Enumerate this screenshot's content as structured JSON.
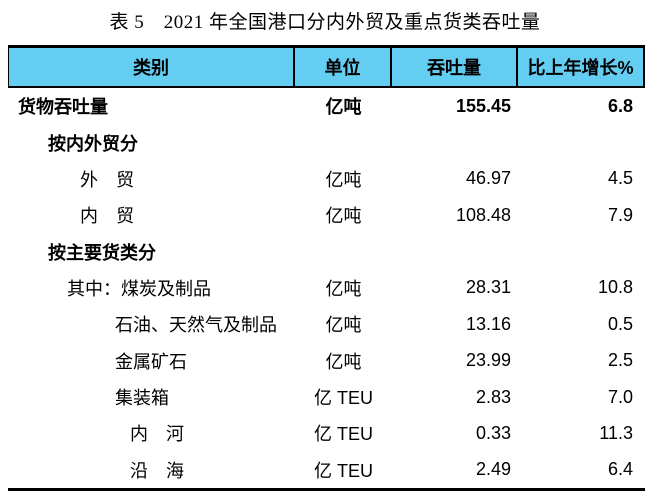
{
  "title": "表 5　2021 年全国港口分内外贸及重点货类吞吐量",
  "colors": {
    "header_bg": "#63CDF2",
    "border": "#000000"
  },
  "table": {
    "columns": [
      {
        "label": "类别"
      },
      {
        "label": "单位"
      },
      {
        "label": "吞吐量"
      },
      {
        "label": "比上年增长%"
      }
    ],
    "rows": [
      {
        "label": "货物吞吐量",
        "indent": 0,
        "bold": true,
        "unit": "亿吨",
        "value": "155.45",
        "growth": "6.8"
      },
      {
        "label": "按内外贸分",
        "indent": 1,
        "bold": true,
        "unit": "",
        "value": "",
        "growth": ""
      },
      {
        "label": "外　贸",
        "indent": 2,
        "bold": false,
        "unit": "亿吨",
        "value": "46.97",
        "growth": "4.5"
      },
      {
        "label": "内　贸",
        "indent": 2,
        "bold": false,
        "unit": "亿吨",
        "value": "108.48",
        "growth": "7.9"
      },
      {
        "label": "按主要货类分",
        "indent": 1,
        "bold": true,
        "unit": "",
        "value": "",
        "growth": ""
      },
      {
        "label": "其中：煤炭及制品",
        "indent": 3,
        "bold": false,
        "unit": "亿吨",
        "value": "28.31",
        "growth": "10.8"
      },
      {
        "label": "石油、天然气及制品",
        "indent": 4,
        "bold": false,
        "unit": "亿吨",
        "value": "13.16",
        "growth": "0.5"
      },
      {
        "label": "金属矿石",
        "indent": 4,
        "bold": false,
        "unit": "亿吨",
        "value": "23.99",
        "growth": "2.5"
      },
      {
        "label": "集装箱",
        "indent": 4,
        "bold": false,
        "unit": "亿 TEU",
        "value": "2.83",
        "growth": "7.0"
      },
      {
        "label": "内　河",
        "indent": 5,
        "bold": false,
        "unit": "亿 TEU",
        "value": "0.33",
        "growth": "11.3"
      },
      {
        "label": "沿　海",
        "indent": 5,
        "bold": false,
        "unit": "亿 TEU",
        "value": "2.49",
        "growth": "6.4"
      }
    ]
  }
}
